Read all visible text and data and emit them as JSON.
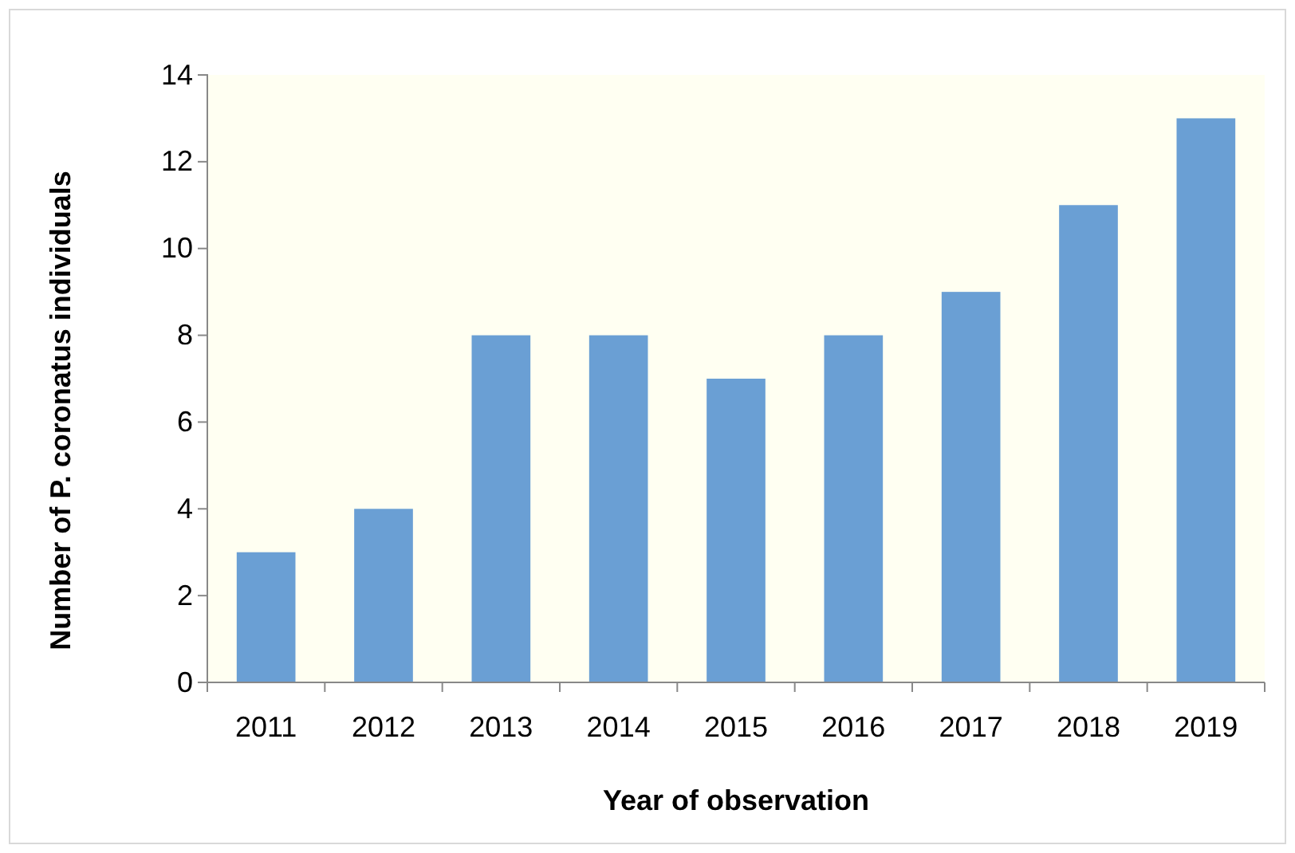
{
  "chart_data": {
    "type": "bar",
    "xlabel": "Year of observation",
    "ylabel": "Number of P. coronatus individuals",
    "categories": [
      "2011",
      "2012",
      "2013",
      "2014",
      "2015",
      "2016",
      "2017",
      "2018",
      "2019"
    ],
    "values": [
      3,
      4,
      8,
      8,
      7,
      8,
      9,
      11,
      13
    ],
    "color": "#6a9fd4",
    "ylim": [
      0,
      14
    ],
    "yticks": [
      0,
      2,
      4,
      6,
      8,
      10,
      12,
      14
    ],
    "grid": false
  }
}
